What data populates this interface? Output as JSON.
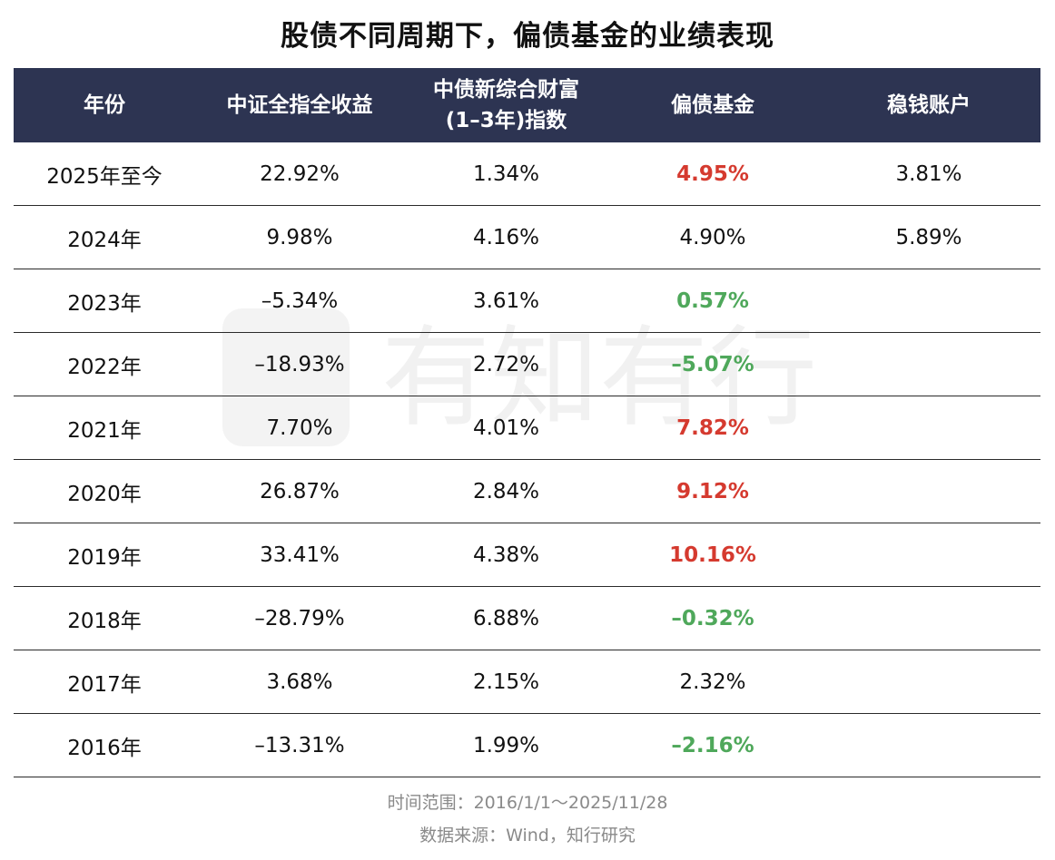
{
  "title": "股债不同周期下，偏债基金的业绩表现",
  "chart_data": {
    "type": "table",
    "title": "股债不同周期下，偏债基金的业绩表现",
    "columns": [
      "年份",
      "中证全指全收益",
      "中债新综合财富(1–3年)指数",
      "偏债基金",
      "稳钱账户"
    ],
    "header_lines": {
      "col0": "年份",
      "col1": "中证全指全收益",
      "col2_line1": "中债新综合财富",
      "col2_line2": "(1–3年)指数",
      "col3": "偏债基金",
      "col4": "稳钱账户"
    },
    "rows": [
      {
        "year": "2025年至今",
        "csi": "22.92%",
        "bond": "1.34%",
        "fund": "4.95%",
        "fund_color": "red",
        "wallet": "3.81%"
      },
      {
        "year": "2024年",
        "csi": "9.98%",
        "bond": "4.16%",
        "fund": "4.90%",
        "fund_color": "black",
        "wallet": "5.89%"
      },
      {
        "year": "2023年",
        "csi": "–5.34%",
        "bond": "3.61%",
        "fund": "0.57%",
        "fund_color": "green",
        "wallet": ""
      },
      {
        "year": "2022年",
        "csi": "–18.93%",
        "bond": "2.72%",
        "fund": "–5.07%",
        "fund_color": "green",
        "wallet": ""
      },
      {
        "year": "2021年",
        "csi": "7.70%",
        "bond": "4.01%",
        "fund": "7.82%",
        "fund_color": "red",
        "wallet": ""
      },
      {
        "year": "2020年",
        "csi": "26.87%",
        "bond": "2.84%",
        "fund": "9.12%",
        "fund_color": "red",
        "wallet": ""
      },
      {
        "year": "2019年",
        "csi": "33.41%",
        "bond": "4.38%",
        "fund": "10.16%",
        "fund_color": "red",
        "wallet": ""
      },
      {
        "year": "2018年",
        "csi": "–28.79%",
        "bond": "6.88%",
        "fund": "–0.32%",
        "fund_color": "green",
        "wallet": ""
      },
      {
        "year": "2017年",
        "csi": "3.68%",
        "bond": "2.15%",
        "fund": "2.32%",
        "fund_color": "black",
        "wallet": ""
      },
      {
        "year": "2016年",
        "csi": "–13.31%",
        "bond": "1.99%",
        "fund": "–2.16%",
        "fund_color": "green",
        "wallet": ""
      }
    ]
  },
  "colors": {
    "header_bg": "#2d3452",
    "red": "#d53a2f",
    "green": "#4fa85b"
  },
  "watermark": "有知有行",
  "footer": {
    "range": "时间范围：2016/1/1～2025/11/28",
    "source": "数据来源：Wind，知行研究"
  }
}
